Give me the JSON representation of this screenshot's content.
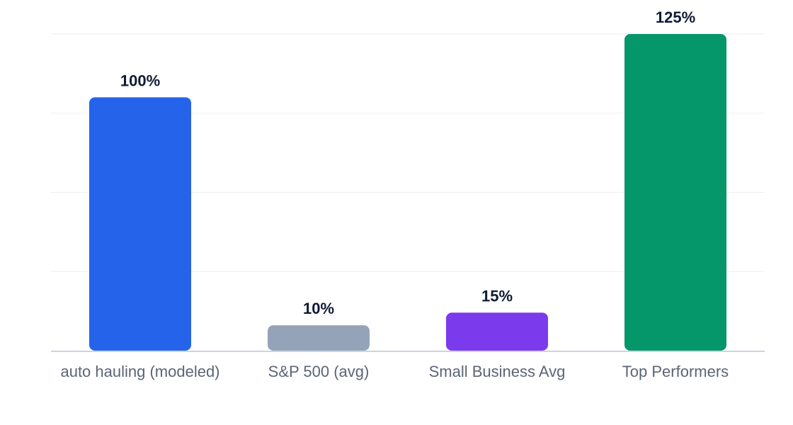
{
  "chart_data": {
    "type": "bar",
    "categories": [
      "auto hauling (modeled)",
      "S&P 500 (avg)",
      "Small Business Avg",
      "Top Performers"
    ],
    "values": [
      100,
      10,
      15,
      125
    ],
    "value_labels": [
      "100%",
      "10%",
      "15%",
      "125%"
    ],
    "colors": [
      "#2563eb",
      "#94a3b8",
      "#7c3aed",
      "#059669"
    ],
    "ylim": [
      0,
      125
    ],
    "grid": true,
    "grid_lines": 5,
    "title": "",
    "xlabel": "",
    "ylabel": ""
  }
}
